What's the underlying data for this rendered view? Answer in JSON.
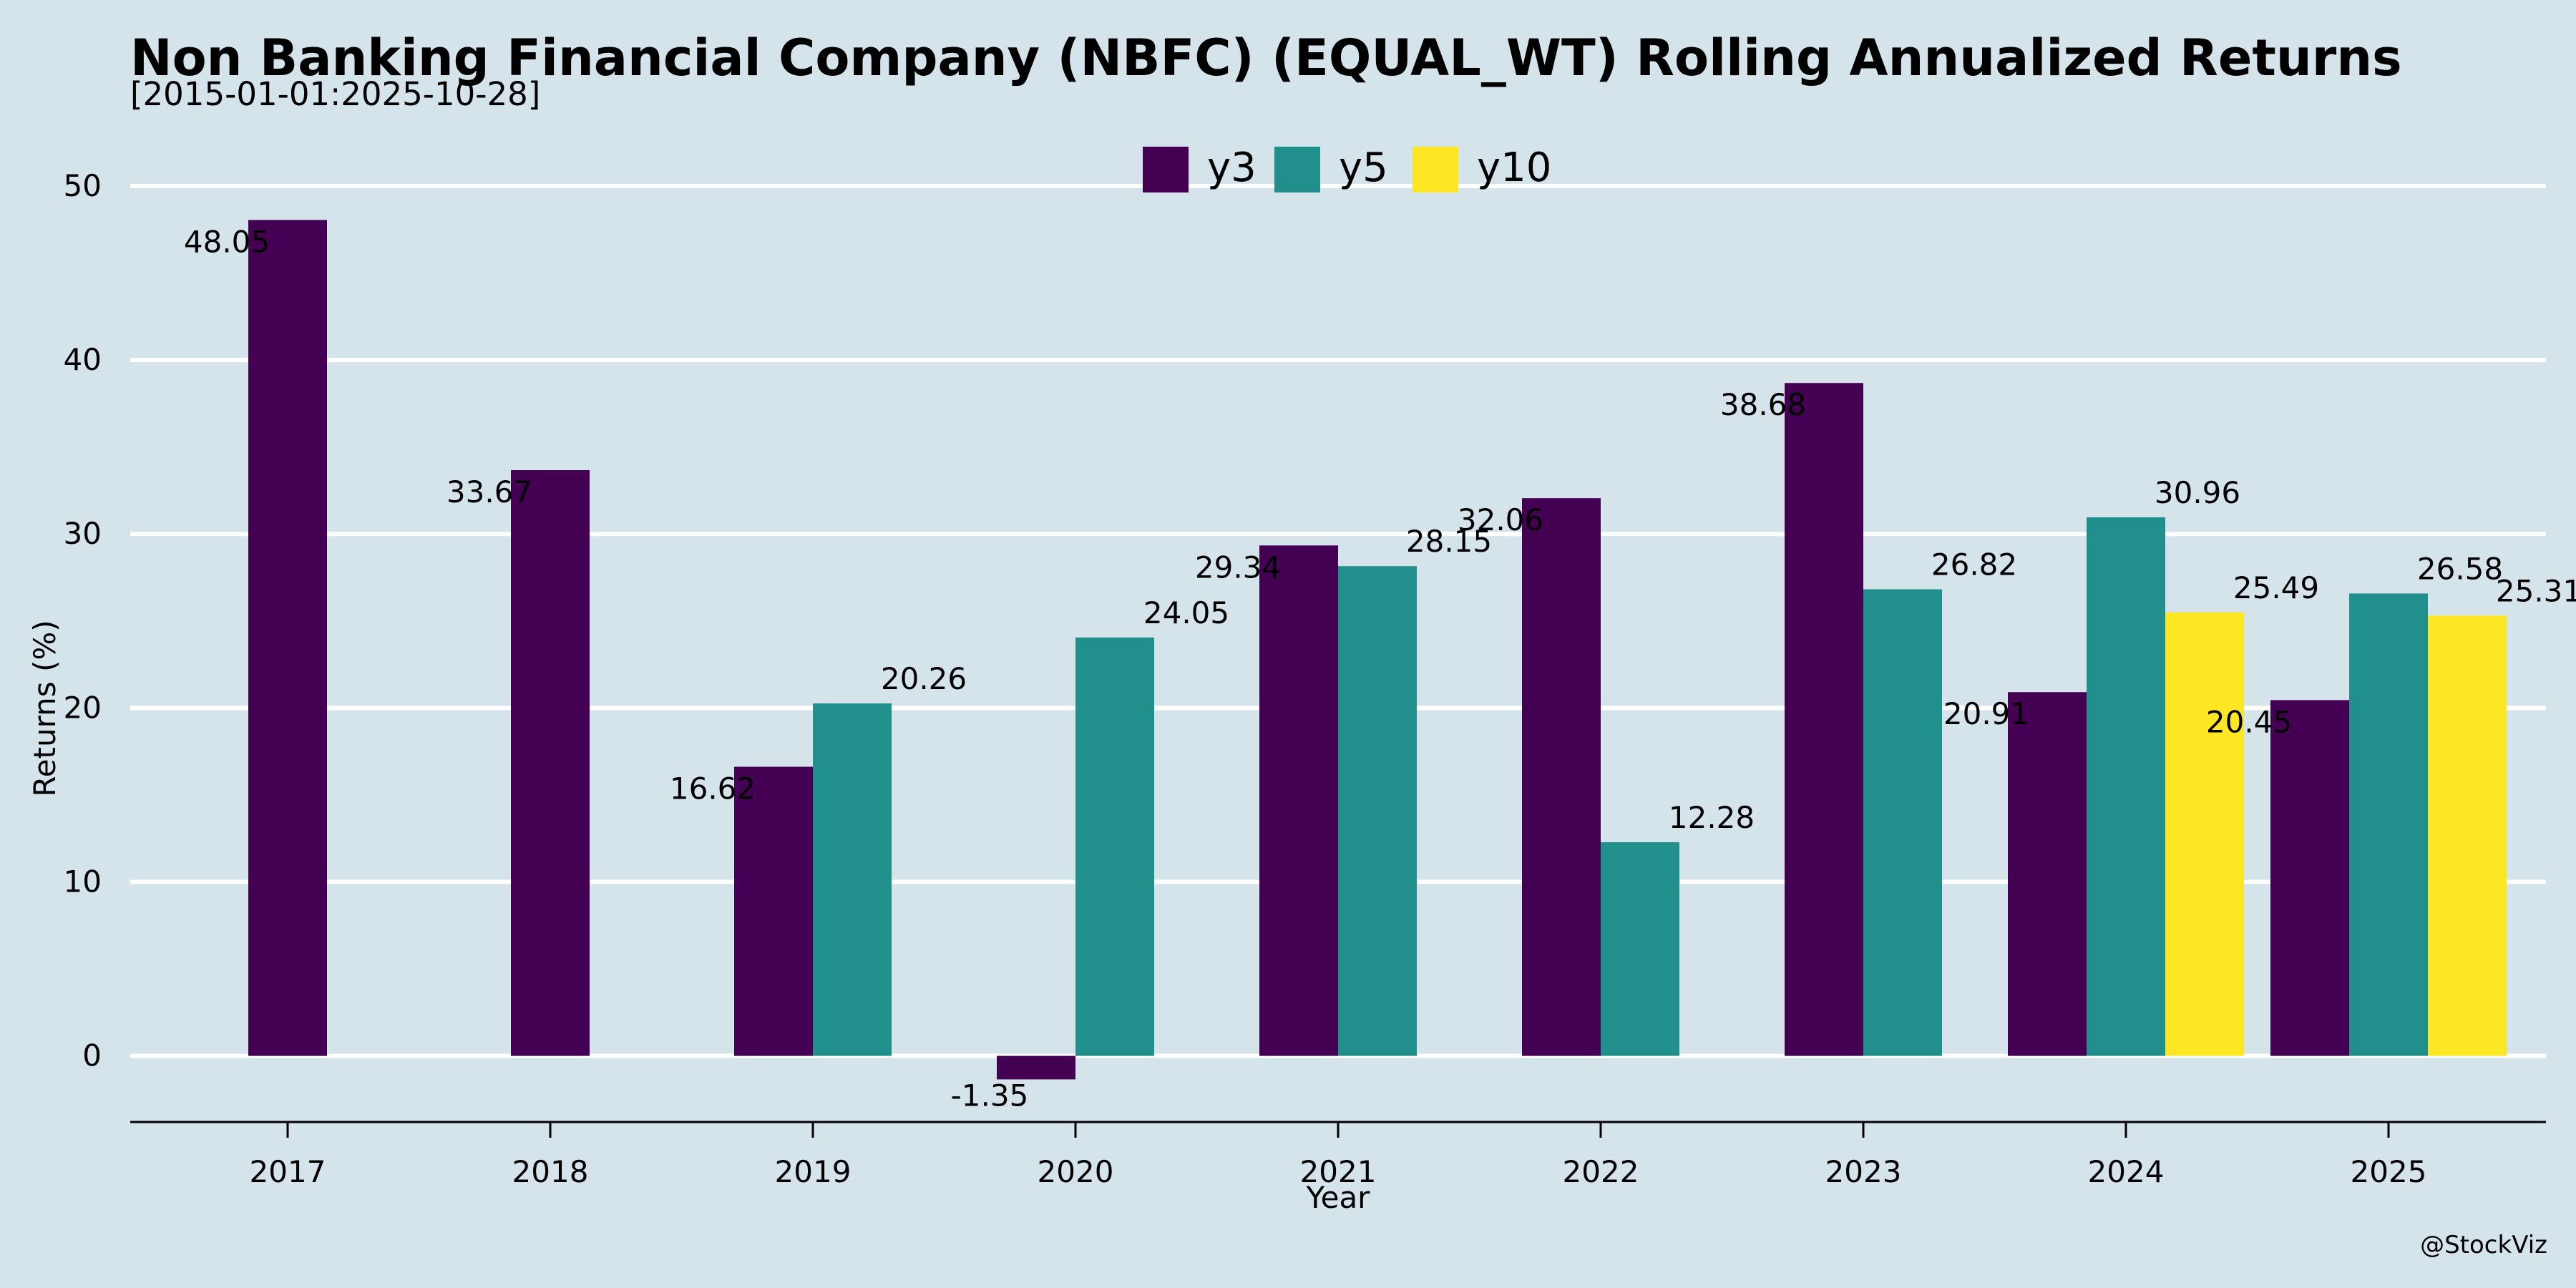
{
  "title": "Non Banking Financial Company (NBFC) (EQUAL_WT) Rolling Annualized Returns",
  "subtitle": "[2015-01-01:2025-10-28]",
  "credit": "@StockViz",
  "chart_data": {
    "type": "bar",
    "categories": [
      "2017",
      "2018",
      "2019",
      "2020",
      "2021",
      "2022",
      "2023",
      "2024",
      "2025"
    ],
    "series": [
      {
        "name": "y3",
        "color": "#440154",
        "values": [
          48.05,
          33.67,
          16.62,
          -1.35,
          29.34,
          32.06,
          38.68,
          20.91,
          20.45
        ]
      },
      {
        "name": "y5",
        "color": "#21908c",
        "values": [
          null,
          null,
          20.26,
          24.05,
          28.15,
          12.28,
          26.82,
          30.96,
          26.58
        ]
      },
      {
        "name": "y10",
        "color": "#fde725",
        "values": [
          null,
          null,
          null,
          null,
          null,
          null,
          null,
          25.49,
          25.31
        ]
      }
    ],
    "xlabel": "Year",
    "ylabel": "Returns (%)",
    "ylim": [
      -3.8,
      50
    ],
    "yticks": [
      0,
      10,
      20,
      30,
      40,
      50
    ],
    "grid": true,
    "legend": "top-center"
  }
}
